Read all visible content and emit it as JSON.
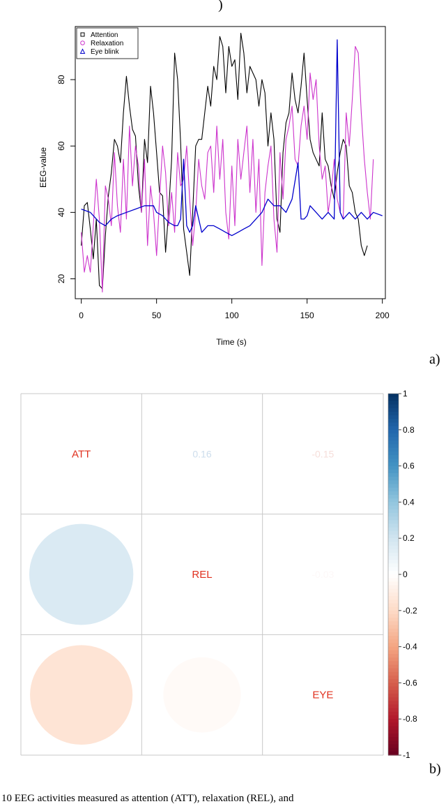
{
  "top_fragment": ")",
  "caption": "10 EEG activities measured as attention (ATT), relaxation (REL), and",
  "chart_data": [
    {
      "type": "line",
      "panel_label": "a)",
      "xlabel": "Time (s)",
      "ylabel": "EEG-value",
      "xlim": [
        -4,
        202
      ],
      "ylim": [
        14,
        96
      ],
      "xticks": [
        0,
        50,
        100,
        150,
        200
      ],
      "yticks": [
        20,
        40,
        60,
        80
      ],
      "grid": false,
      "legend_position": "top-left",
      "series": [
        {
          "name": "Attention",
          "color": "#000000",
          "marker": "square",
          "x": [
            0,
            2,
            4,
            6,
            8,
            10,
            12,
            14,
            16,
            18,
            20,
            22,
            24,
            26,
            28,
            30,
            32,
            34,
            36,
            38,
            40,
            42,
            44,
            46,
            48,
            50,
            52,
            54,
            56,
            58,
            60,
            62,
            64,
            66,
            68,
            70,
            72,
            74,
            76,
            78,
            80,
            82,
            84,
            86,
            88,
            90,
            92,
            94,
            96,
            98,
            100,
            102,
            104,
            106,
            108,
            110,
            112,
            114,
            116,
            118,
            120,
            122,
            124,
            126,
            128,
            130,
            132,
            134,
            136,
            138,
            140,
            142,
            144,
            146,
            148,
            150,
            152,
            154,
            156,
            158,
            160,
            162,
            164,
            166,
            168,
            170,
            172,
            174,
            176,
            178,
            180,
            182,
            184,
            186,
            188,
            190
          ],
          "y": [
            30,
            42,
            43,
            35,
            26,
            38,
            18,
            17,
            33,
            45,
            52,
            62,
            60,
            55,
            70,
            81,
            72,
            65,
            63,
            48,
            40,
            62,
            55,
            78,
            70,
            58,
            46,
            45,
            28,
            40,
            56,
            88,
            80,
            61,
            35,
            28,
            21,
            40,
            60,
            62,
            62,
            70,
            78,
            72,
            84,
            80,
            93,
            90,
            76,
            90,
            84,
            86,
            74,
            94,
            88,
            76,
            84,
            82,
            80,
            72,
            80,
            76,
            60,
            70,
            62,
            38,
            34,
            58,
            67,
            70,
            82,
            74,
            70,
            78,
            88,
            74,
            62,
            58,
            56,
            54,
            70,
            56,
            54,
            48,
            44,
            52,
            58,
            62,
            60,
            48,
            46,
            40,
            38,
            30,
            27,
            30
          ]
        },
        {
          "name": "Relaxation",
          "color": "#cc33cc",
          "marker": "circle",
          "x": [
            0,
            2,
            4,
            6,
            8,
            10,
            12,
            14,
            16,
            18,
            20,
            22,
            24,
            26,
            28,
            30,
            32,
            34,
            36,
            38,
            40,
            42,
            44,
            46,
            48,
            50,
            52,
            54,
            56,
            58,
            60,
            62,
            64,
            66,
            68,
            70,
            72,
            74,
            76,
            78,
            80,
            82,
            84,
            86,
            88,
            90,
            92,
            94,
            96,
            98,
            100,
            102,
            104,
            106,
            108,
            110,
            112,
            114,
            116,
            118,
            120,
            122,
            124,
            126,
            128,
            130,
            132,
            134,
            136,
            138,
            140,
            142,
            144,
            146,
            148,
            150,
            152,
            154,
            156,
            158,
            160,
            162,
            164,
            166,
            168,
            170,
            172,
            174,
            176,
            178,
            180,
            182,
            184,
            186,
            188,
            190,
            192,
            194
          ],
          "y": [
            34,
            22,
            27,
            22,
            36,
            50,
            38,
            16,
            48,
            44,
            36,
            58,
            42,
            34,
            56,
            38,
            66,
            48,
            60,
            54,
            40,
            56,
            30,
            48,
            40,
            27,
            44,
            60,
            52,
            36,
            46,
            34,
            58,
            48,
            50,
            60,
            44,
            30,
            40,
            56,
            48,
            44,
            58,
            60,
            46,
            66,
            50,
            62,
            40,
            32,
            54,
            36,
            62,
            50,
            58,
            66,
            46,
            62,
            40,
            56,
            24,
            46,
            54,
            60,
            38,
            28,
            58,
            44,
            62,
            66,
            72,
            56,
            54,
            66,
            72,
            62,
            82,
            74,
            80,
            60,
            50,
            54,
            40,
            46,
            56,
            44,
            40,
            38,
            70,
            60,
            74,
            90,
            88,
            70,
            56,
            46,
            38,
            56
          ]
        },
        {
          "name": "Eye blink",
          "color": "#0000cc",
          "marker": "triangle",
          "x": [
            0,
            6,
            12,
            16,
            20,
            24,
            30,
            36,
            42,
            48,
            50,
            54,
            58,
            62,
            64,
            66,
            68,
            70,
            72,
            74,
            76,
            80,
            84,
            88,
            92,
            96,
            100,
            104,
            108,
            112,
            116,
            120,
            124,
            128,
            132,
            136,
            140,
            144,
            146,
            148,
            150,
            152,
            156,
            160,
            164,
            168,
            170,
            172,
            174,
            178,
            182,
            186,
            190,
            194,
            200
          ],
          "y": [
            41,
            40,
            37,
            36,
            38,
            39,
            40,
            41,
            42,
            42,
            40,
            39,
            37,
            36,
            36,
            38,
            56,
            36,
            34,
            36,
            42,
            34,
            36,
            36,
            35,
            34,
            33,
            34,
            35,
            36,
            38,
            40,
            44,
            42,
            42,
            40,
            44,
            55,
            38,
            38,
            39,
            42,
            40,
            38,
            40,
            38,
            92,
            40,
            38,
            40,
            38,
            40,
            38,
            40,
            39
          ]
        }
      ]
    },
    {
      "type": "heatmap",
      "panel_label": "b)",
      "variables": [
        "ATT",
        "REL",
        "EYE"
      ],
      "matrix": [
        [
          1,
          0.16,
          -0.15
        ],
        [
          0.16,
          1,
          -0.03
        ],
        [
          -0.15,
          -0.03,
          1
        ]
      ],
      "upper_labels": [
        "0.16",
        "-0.15",
        "-0.03"
      ],
      "colorbar_range": [
        -1,
        1
      ],
      "colorbar_ticks": [
        "1",
        "0.8",
        "0.6",
        "0.4",
        "0.2",
        "0",
        "-0.2",
        "-0.4",
        "-0.6",
        "-0.8",
        "-1"
      ]
    }
  ]
}
